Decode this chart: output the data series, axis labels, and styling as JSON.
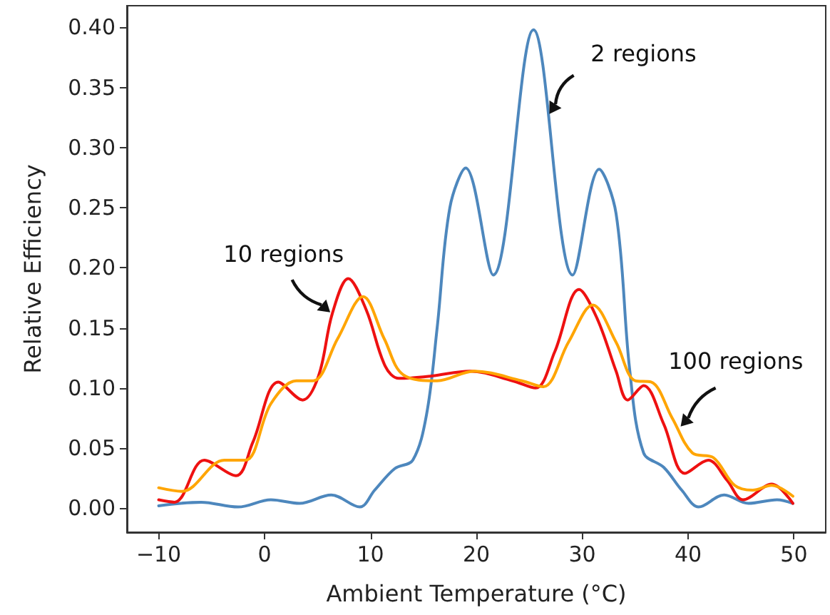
{
  "chart_data": {
    "type": "line",
    "xlabel": "Ambient Temperature (°C)",
    "ylabel": "Relative Efficiency",
    "xlim": [
      -13,
      53
    ],
    "ylim": [
      -0.02,
      0.418
    ],
    "xticks": [
      {
        "value": -10,
        "label": "−10"
      },
      0,
      10,
      20,
      30,
      40,
      50
    ],
    "yticks": [
      {
        "value": 0,
        "label": "0.00"
      },
      {
        "value": 0.05,
        "label": "0.05"
      },
      {
        "value": 0.1,
        "label": "0.10"
      },
      {
        "value": 0.15,
        "label": "0.15"
      },
      {
        "value": 0.2,
        "label": "0.20"
      },
      {
        "value": 0.25,
        "label": "0.25"
      },
      {
        "value": 0.3,
        "label": "0.30"
      },
      {
        "value": 0.35,
        "label": "0.35"
      },
      {
        "value": 0.4,
        "label": "0.40"
      }
    ],
    "grid": false,
    "legend": false,
    "marker": "none",
    "line_style": "solid",
    "series": [
      {
        "name": "2 regions",
        "color": "#4d87bd",
        "x": [
          -10,
          -6,
          -2.5,
          0.6,
          3.3,
          6.3,
          9,
          10.4,
          12.3,
          14,
          15.3,
          16.3,
          17.5,
          19,
          21.6,
          25.4,
          29.1,
          31.6,
          33.2,
          34.5,
          35.8,
          37.7,
          39.4,
          41,
          43.4,
          45.7,
          48.4,
          49.9
        ],
        "values": [
          0.002,
          0.005,
          0.001,
          0.007,
          0.004,
          0.011,
          0.001,
          0.015,
          0.033,
          0.04,
          0.078,
          0.15,
          0.25,
          0.283,
          0.194,
          0.398,
          0.194,
          0.282,
          0.245,
          0.114,
          0.046,
          0.034,
          0.015,
          0.001,
          0.011,
          0.004,
          0.007,
          0.004
        ]
      },
      {
        "name": "10 regions",
        "color": "#ee1111",
        "x": [
          -10,
          -8.5,
          -5.7,
          -2.7,
          -1.1,
          1.3,
          3.6,
          5.1,
          6.4,
          7.9,
          9.6,
          11.4,
          12.7,
          15.8,
          19.4,
          23.4,
          25.6,
          27.4,
          29.7,
          31.4,
          33.2,
          34.3,
          35.8,
          37.7,
          39.7,
          41.9,
          43.7,
          45.2,
          47.9,
          49.9
        ],
        "values": [
          0.007,
          0.005,
          0.04,
          0.027,
          0.055,
          0.105,
          0.09,
          0.11,
          0.162,
          0.191,
          0.165,
          0.118,
          0.108,
          0.11,
          0.114,
          0.106,
          0.1,
          0.13,
          0.182,
          0.158,
          0.114,
          0.09,
          0.102,
          0.07,
          0.029,
          0.04,
          0.023,
          0.007,
          0.02,
          0.004
        ]
      },
      {
        "name": "100 regions",
        "color": "#ffa500",
        "x": [
          -10,
          -7.8,
          -3.8,
          -1.8,
          0.6,
          3,
          4.6,
          6.9,
          9.3,
          11.3,
          13.1,
          16.3,
          19.8,
          24.3,
          26.3,
          28.7,
          31,
          33.2,
          35,
          36.5,
          38.5,
          40.4,
          42.4,
          44.4,
          46.1,
          47.9,
          49.9
        ],
        "values": [
          0.017,
          0.014,
          0.04,
          0.04,
          0.087,
          0.106,
          0.106,
          0.141,
          0.176,
          0.141,
          0.111,
          0.106,
          0.114,
          0.106,
          0.101,
          0.138,
          0.169,
          0.138,
          0.106,
          0.105,
          0.075,
          0.046,
          0.042,
          0.019,
          0.015,
          0.019,
          0.01
        ]
      }
    ]
  }
}
